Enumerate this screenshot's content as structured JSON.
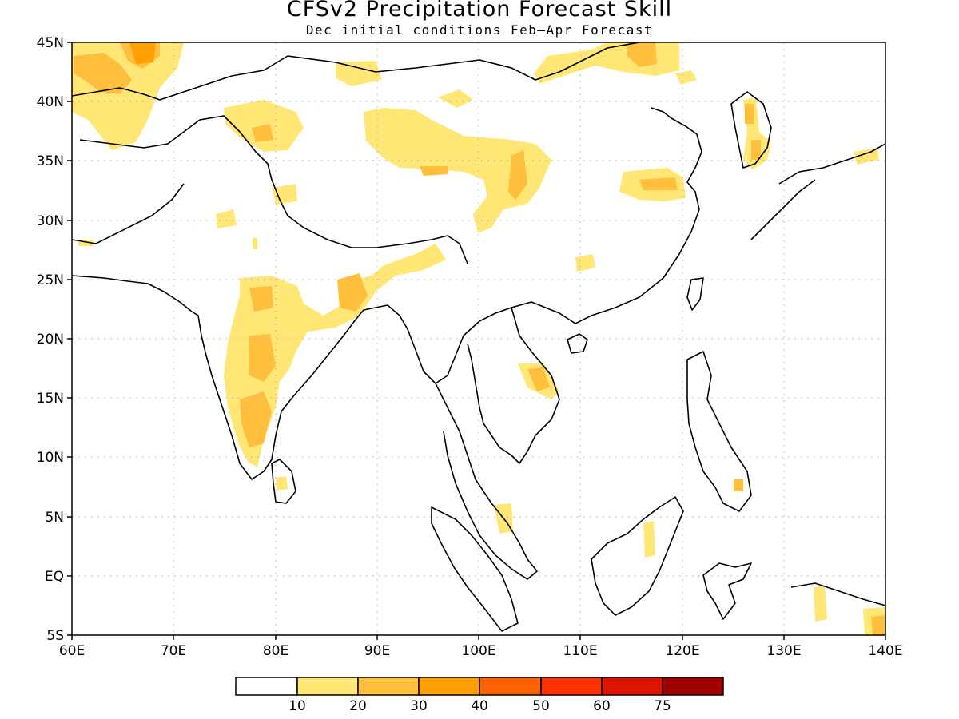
{
  "header": {
    "title": "CFSv2 Precipitation Forecast Skill",
    "subtitle": "Dec initial conditions  Feb–Apr Forecast"
  },
  "map": {
    "lon_range": [
      60,
      140
    ],
    "lat_range": [
      -5,
      45
    ],
    "grid": "dotted",
    "lat_labels": [
      "45N",
      "40N",
      "35N",
      "30N",
      "25N",
      "20N",
      "15N",
      "10N",
      "5N",
      "EQ",
      "5S"
    ],
    "lon_labels": [
      "60E",
      "70E",
      "80E",
      "90E",
      "100E",
      "110E",
      "120E",
      "130E",
      "140E"
    ]
  },
  "legend": {
    "colors": [
      "#ffffff",
      "#ffe675",
      "#ffbe3c",
      "#ffa000",
      "#ff6400",
      "#ff3200",
      "#dc1400",
      "#a00000"
    ],
    "labels": [
      "10",
      "20",
      "30",
      "40",
      "50",
      "60",
      "75"
    ]
  }
}
